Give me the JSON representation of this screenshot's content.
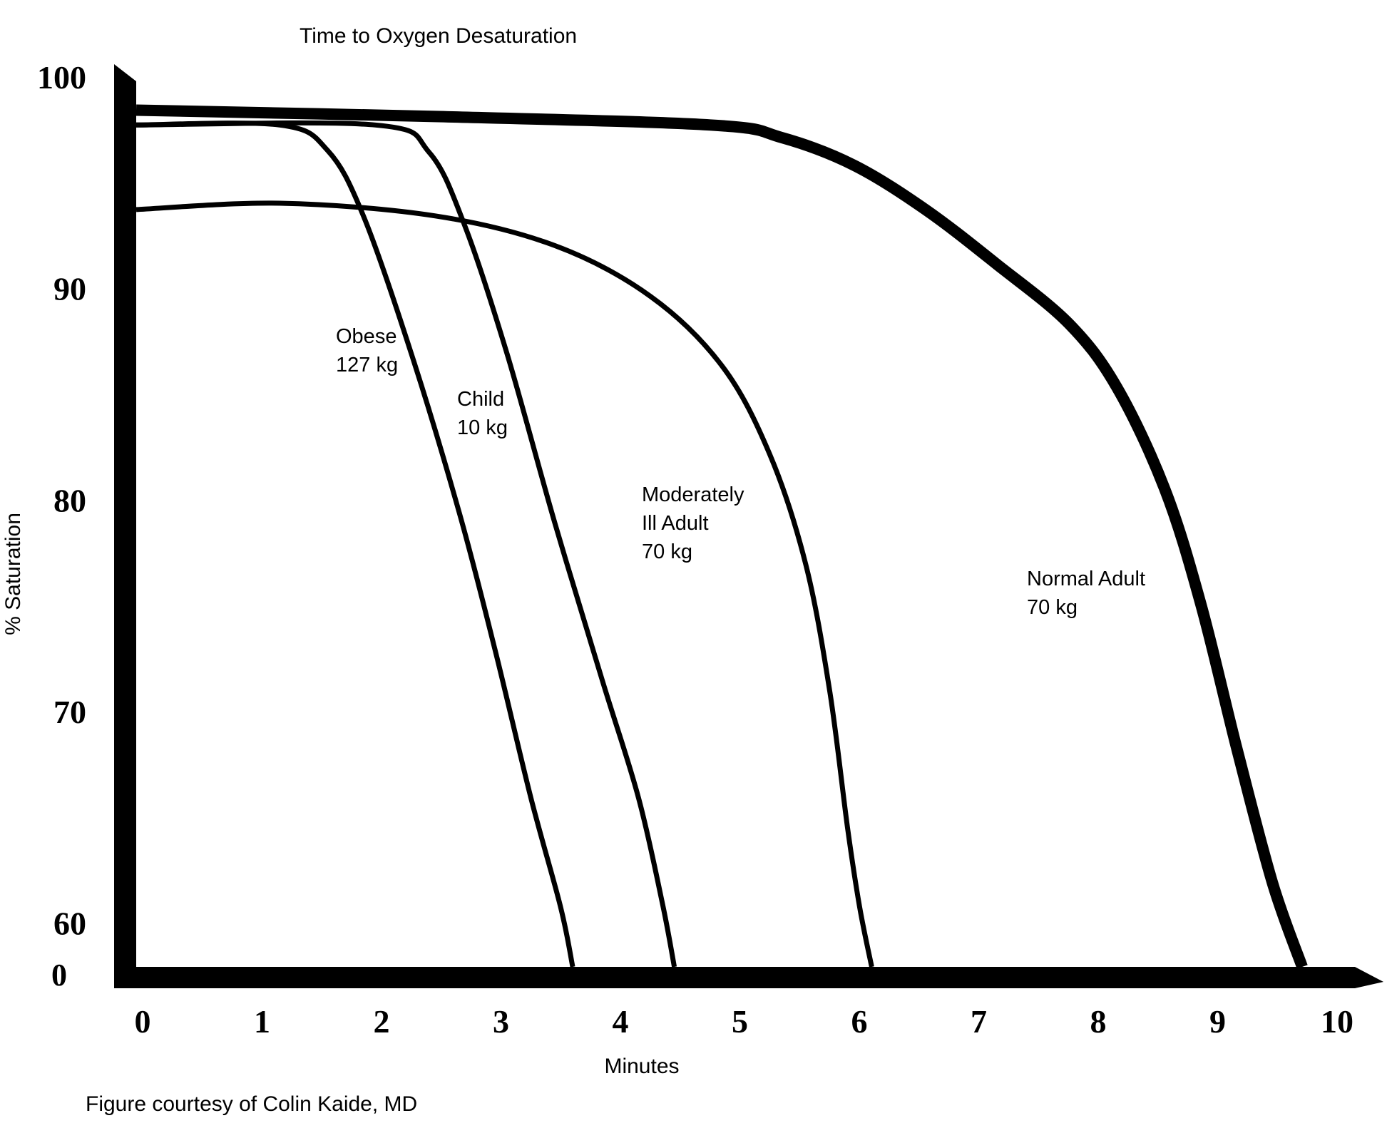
{
  "chart_data": {
    "type": "line",
    "title": "Time to Oxygen Desaturation",
    "xlabel": "Minutes",
    "ylabel": "% Saturation",
    "footnote": "Figure courtesy of Colin Kaide, MD",
    "x_ticks": [
      "0",
      "1",
      "2",
      "3",
      "4",
      "5",
      "6",
      "7",
      "8",
      "9",
      "10"
    ],
    "y_ticks": [
      {
        "label": "100",
        "value": 100
      },
      {
        "label": "90",
        "value": 90
      },
      {
        "label": "80",
        "value": 80
      },
      {
        "label": "70",
        "value": 70
      },
      {
        "label": "60",
        "value": 60
      }
    ],
    "y_origin_label": "0",
    "xlim": [
      0,
      10
    ],
    "ylim": [
      58,
      100
    ],
    "grid": false,
    "legend": "none",
    "series": [
      {
        "label_lines": [
          "Obese",
          "127 kg"
        ],
        "color": "#000000",
        "points": [
          [
            0,
            97.8
          ],
          [
            1.2,
            97.8
          ],
          [
            1.6,
            96.6
          ],
          [
            1.9,
            93.5
          ],
          [
            2.3,
            87
          ],
          [
            2.7,
            79.5
          ],
          [
            3.0,
            73
          ],
          [
            3.3,
            66
          ],
          [
            3.55,
            60.8
          ],
          [
            3.65,
            58
          ]
        ]
      },
      {
        "label_lines": [
          "Child",
          "10 kg"
        ],
        "color": "#000000",
        "points": [
          [
            0,
            97.8
          ],
          [
            2.0,
            97.8
          ],
          [
            2.45,
            96.5
          ],
          [
            2.75,
            93
          ],
          [
            3.1,
            87
          ],
          [
            3.5,
            79
          ],
          [
            3.9,
            71.5
          ],
          [
            4.2,
            66
          ],
          [
            4.4,
            61
          ],
          [
            4.5,
            58
          ]
        ]
      },
      {
        "label_lines": [
          "Moderately",
          "Ill Adult",
          "70 kg"
        ],
        "color": "#000000",
        "points": [
          [
            0,
            93.8
          ],
          [
            1.2,
            94.1
          ],
          [
            2.5,
            93.5
          ],
          [
            3.5,
            92.1
          ],
          [
            4.3,
            89.7
          ],
          [
            4.9,
            86.4
          ],
          [
            5.3,
            82.2
          ],
          [
            5.6,
            77
          ],
          [
            5.8,
            71
          ],
          [
            5.95,
            64.5
          ],
          [
            6.05,
            60.8
          ],
          [
            6.15,
            58
          ]
        ]
      },
      {
        "label_lines": [
          "Normal Adult",
          "70 kg"
        ],
        "color": "#000000",
        "points": [
          [
            0,
            98.5
          ],
          [
            2.5,
            98.2
          ],
          [
            4.8,
            97.8
          ],
          [
            5.4,
            97.2
          ],
          [
            6.0,
            95.9
          ],
          [
            6.6,
            93.8
          ],
          [
            7.2,
            91.2
          ],
          [
            7.8,
            88.4
          ],
          [
            8.2,
            85.4
          ],
          [
            8.6,
            80.6
          ],
          [
            8.9,
            75.2
          ],
          [
            9.2,
            68.4
          ],
          [
            9.5,
            62
          ],
          [
            9.75,
            58
          ]
        ]
      }
    ]
  }
}
